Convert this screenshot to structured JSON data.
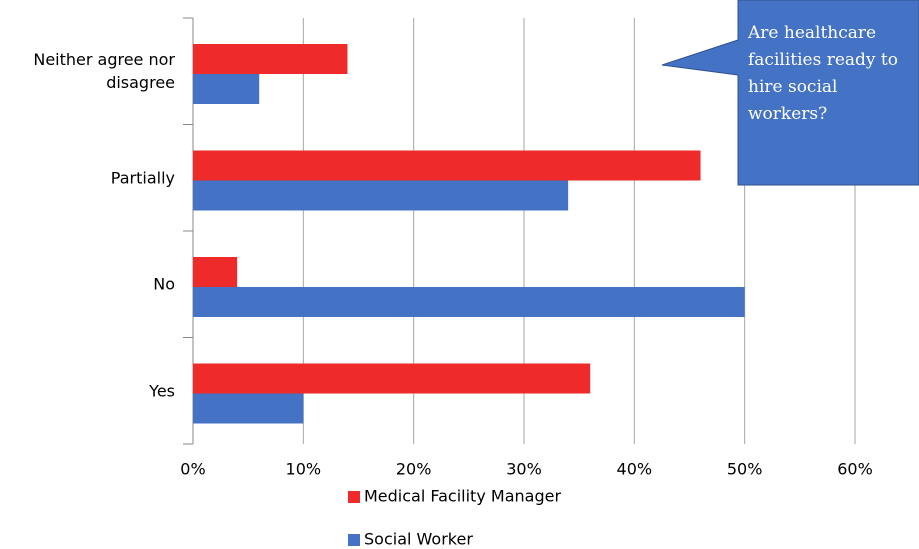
{
  "chart_data": {
    "type": "hbar",
    "annotation": "Are healthcare facilities ready to hire social workers?",
    "categories": [
      "Neither agree nor disagree",
      "Partially",
      "No",
      "Yes"
    ],
    "series": [
      {
        "name": "Medical Facility Manager",
        "color": "#ee2a2a",
        "values": [
          14,
          46,
          4,
          36
        ]
      },
      {
        "name": "Social Worker",
        "color": "#4472c4",
        "values": [
          6,
          34,
          50,
          10
        ]
      }
    ],
    "xlim": [
      0,
      60
    ],
    "xticks": [
      {
        "value": 0,
        "label": "0%"
      },
      {
        "value": 10,
        "label": "10%"
      },
      {
        "value": 20,
        "label": "20%"
      },
      {
        "value": 30,
        "label": "30%"
      },
      {
        "value": 40,
        "label": "40%"
      },
      {
        "value": 50,
        "label": "50%"
      },
      {
        "value": 60,
        "label": "60%"
      }
    ],
    "grid": true,
    "legend": "bottom"
  }
}
